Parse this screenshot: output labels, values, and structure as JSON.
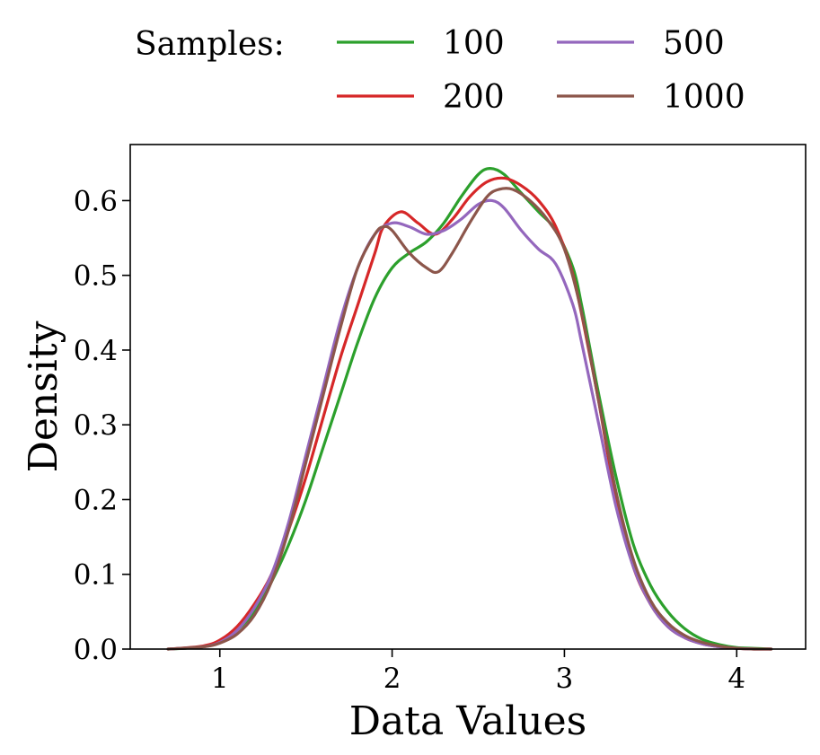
{
  "chart_data": {
    "type": "line",
    "title": "",
    "xlabel": "Data Values",
    "ylabel": "Density",
    "xlim": [
      0.48,
      4.4
    ],
    "ylim": [
      0,
      0.675
    ],
    "xticks": [
      1,
      2,
      3,
      4
    ],
    "xtick_labels": [
      "1",
      "2",
      "3",
      "4"
    ],
    "yticks": [
      0,
      0.1,
      0.2,
      0.3,
      0.4,
      0.5,
      0.6
    ],
    "ytick_labels": [
      "0.0",
      "0.1",
      "0.2",
      "0.3",
      "0.4",
      "0.5",
      "0.6"
    ],
    "grid": false,
    "legend": {
      "title": "Samples:",
      "placement": "top-center, above plot",
      "columns": 2
    },
    "series": [
      {
        "name": "100",
        "color": "#2ca02c",
        "x": [
          0.7,
          0.9,
          1.0,
          1.1,
          1.2,
          1.3,
          1.4,
          1.5,
          1.6,
          1.7,
          1.8,
          1.9,
          2.0,
          2.1,
          2.2,
          2.3,
          2.4,
          2.5,
          2.57,
          2.65,
          2.75,
          2.85,
          2.95,
          3.05,
          3.1,
          3.15,
          3.2,
          3.3,
          3.4,
          3.5,
          3.6,
          3.7,
          3.8,
          3.9,
          4.0,
          4.1,
          4.2
        ],
        "y": [
          0.0,
          0.003,
          0.01,
          0.025,
          0.05,
          0.09,
          0.14,
          0.2,
          0.27,
          0.34,
          0.41,
          0.47,
          0.51,
          0.53,
          0.545,
          0.57,
          0.605,
          0.635,
          0.643,
          0.635,
          0.61,
          0.585,
          0.56,
          0.51,
          0.46,
          0.4,
          0.34,
          0.23,
          0.14,
          0.085,
          0.05,
          0.027,
          0.013,
          0.006,
          0.002,
          0.001,
          0.0
        ]
      },
      {
        "name": "200",
        "color": "#d62728",
        "x": [
          0.7,
          0.9,
          1.0,
          1.1,
          1.2,
          1.3,
          1.4,
          1.5,
          1.6,
          1.7,
          1.8,
          1.9,
          1.95,
          2.05,
          2.15,
          2.25,
          2.35,
          2.45,
          2.55,
          2.65,
          2.75,
          2.85,
          2.95,
          3.05,
          3.15,
          3.2,
          3.3,
          3.4,
          3.5,
          3.6,
          3.7,
          3.8,
          3.9,
          4.0,
          4.1,
          4.2
        ],
        "y": [
          0.0,
          0.004,
          0.012,
          0.03,
          0.06,
          0.1,
          0.16,
          0.23,
          0.31,
          0.39,
          0.46,
          0.53,
          0.565,
          0.585,
          0.57,
          0.555,
          0.575,
          0.605,
          0.625,
          0.63,
          0.62,
          0.6,
          0.565,
          0.5,
          0.39,
          0.33,
          0.2,
          0.11,
          0.06,
          0.03,
          0.015,
          0.007,
          0.003,
          0.001,
          0.0,
          0.0
        ]
      },
      {
        "name": "500",
        "color": "#9467bd",
        "x": [
          0.7,
          0.9,
          1.0,
          1.1,
          1.2,
          1.3,
          1.4,
          1.5,
          1.6,
          1.7,
          1.8,
          1.9,
          2.0,
          2.1,
          2.2,
          2.3,
          2.4,
          2.5,
          2.58,
          2.65,
          2.75,
          2.85,
          2.95,
          3.05,
          3.1,
          3.2,
          3.3,
          3.4,
          3.5,
          3.6,
          3.7,
          3.8,
          3.9,
          4.0,
          4.1,
          4.2
        ],
        "y": [
          0.0,
          0.003,
          0.009,
          0.025,
          0.055,
          0.1,
          0.17,
          0.26,
          0.35,
          0.44,
          0.51,
          0.555,
          0.57,
          0.565,
          0.555,
          0.56,
          0.575,
          0.595,
          0.6,
          0.59,
          0.56,
          0.535,
          0.515,
          0.46,
          0.41,
          0.3,
          0.19,
          0.11,
          0.06,
          0.03,
          0.015,
          0.007,
          0.003,
          0.001,
          0.0,
          0.0
        ]
      },
      {
        "name": "1000",
        "color": "#8c564b",
        "x": [
          0.7,
          0.9,
          1.0,
          1.1,
          1.2,
          1.3,
          1.4,
          1.5,
          1.6,
          1.7,
          1.8,
          1.9,
          1.95,
          2.0,
          2.1,
          2.2,
          2.27,
          2.35,
          2.45,
          2.55,
          2.62,
          2.7,
          2.8,
          2.9,
          3.0,
          3.1,
          3.2,
          3.3,
          3.4,
          3.5,
          3.6,
          3.7,
          3.8,
          3.9,
          4.0,
          4.1,
          4.2
        ],
        "y": [
          0.0,
          0.003,
          0.008,
          0.02,
          0.045,
          0.09,
          0.16,
          0.25,
          0.34,
          0.43,
          0.51,
          0.555,
          0.565,
          0.56,
          0.53,
          0.51,
          0.505,
          0.53,
          0.57,
          0.605,
          0.615,
          0.615,
          0.6,
          0.575,
          0.535,
          0.45,
          0.33,
          0.21,
          0.12,
          0.065,
          0.035,
          0.018,
          0.009,
          0.004,
          0.001,
          0.0,
          0.0
        ]
      }
    ]
  }
}
